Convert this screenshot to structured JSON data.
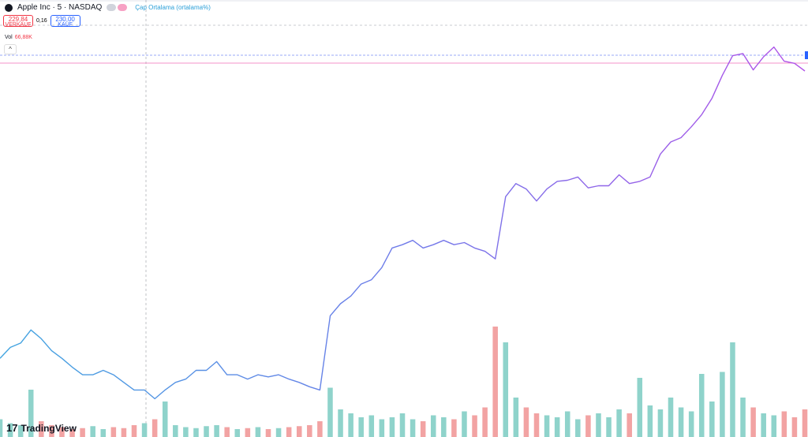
{
  "chart_data": {
    "type": "line",
    "title": "Apple Inc · 5 · NASDAQ",
    "indicator": "Çap Ortalama (ortalama%)",
    "sell_price": "229,84",
    "sell_label": "VERKAUF",
    "spread": "0,16",
    "buy_price": "230,00",
    "buy_label": "KAUF",
    "volume_value": "66,88K",
    "brand": "TradingView",
    "ylim": [
      200,
      240
    ],
    "y2lim": [
      0,
      600
    ],
    "up_color": "#8fd3cb",
    "down_color": "#f2a3a3",
    "series": [
      {
        "colors": [
          "#42a5e0",
          "#6f7be9",
          "#b151e8"
        ],
        "values": [
          207.2,
          208.2,
          208.6,
          209.8,
          209.0,
          207.9,
          207.2,
          206.4,
          205.7,
          205.7,
          206.1,
          205.7,
          205.0,
          204.3,
          204.3,
          203.5,
          204.3,
          205.0,
          205.3,
          206.1,
          206.1,
          206.9,
          205.7,
          205.7,
          205.3,
          205.7,
          205.5,
          205.7,
          205.3,
          205.0,
          204.6,
          204.3,
          211.1,
          212.2,
          212.9,
          214.0,
          214.4,
          215.5,
          217.3,
          217.6,
          218.0,
          217.3,
          217.6,
          218.0,
          217.6,
          217.8,
          217.3,
          217.0,
          216.3,
          222.0,
          223.2,
          222.7,
          221.6,
          222.7,
          223.4,
          223.5,
          223.8,
          222.8,
          223.0,
          223.0,
          224.0,
          223.2,
          223.4,
          223.8,
          225.9,
          227.0,
          227.4,
          228.4,
          229.5,
          231.0,
          233.1,
          234.9,
          235.1,
          233.6,
          234.8,
          235.7,
          234.4,
          234.2,
          233.5
        ]
      },
      {
        "name": "Vol",
        "type": "bar",
        "axis": "y2",
        "values": [
          90,
          70,
          60,
          240,
          80,
          60,
          50,
          40,
          45,
          55,
          40,
          50,
          45,
          60,
          70,
          90,
          180,
          60,
          50,
          45,
          55,
          60,
          50,
          40,
          45,
          50,
          40,
          45,
          50,
          55,
          60,
          80,
          250,
          140,
          120,
          100,
          110,
          90,
          100,
          120,
          90,
          80,
          110,
          100,
          90,
          130,
          110,
          150,
          560,
          480,
          200,
          150,
          120,
          110,
          100,
          130,
          90,
          110,
          120,
          100,
          140,
          120,
          300,
          160,
          140,
          200,
          150,
          130,
          320,
          180,
          330,
          480,
          200,
          150,
          120,
          110,
          130,
          100,
          140
        ]
      }
    ]
  }
}
